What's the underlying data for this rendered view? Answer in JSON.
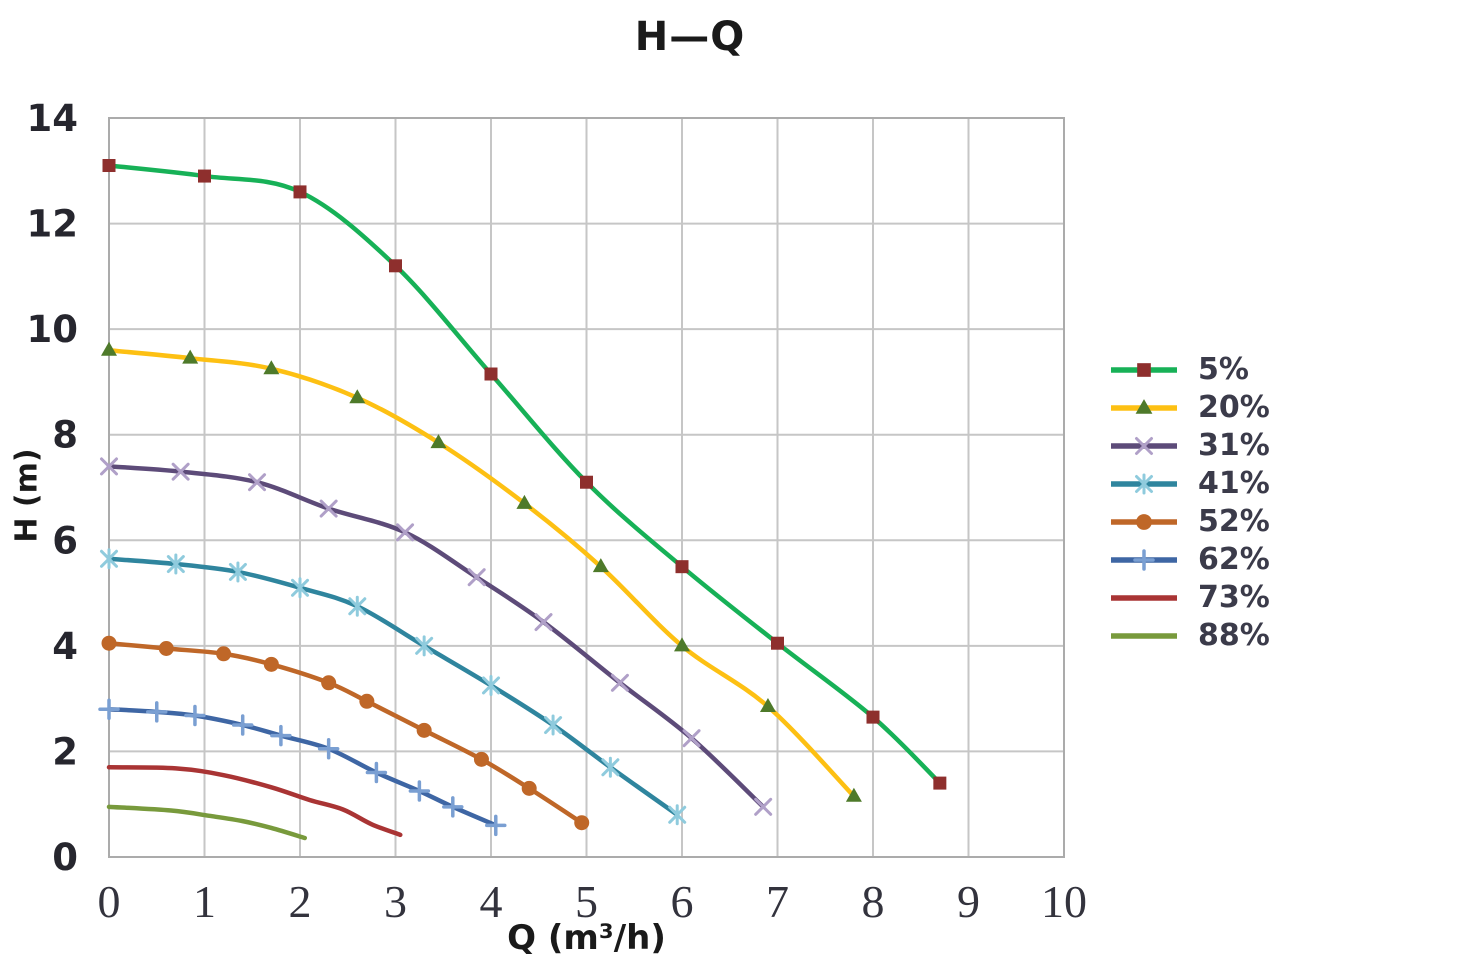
{
  "title": "H—Q",
  "axes": {
    "x_label": "Q (m³/h)",
    "y_label": "H (m)"
  },
  "colors": {
    "gridline": "#c6c6c6",
    "plot_border": "#ababab",
    "text": "#26262e"
  },
  "chart_data": {
    "type": "line",
    "title": "H—Q",
    "xlabel": "Q (m³/h)",
    "ylabel": "H (m)",
    "xlim": [
      0,
      10
    ],
    "ylim": [
      0,
      14
    ],
    "x_ticks": [
      0,
      1,
      2,
      3,
      4,
      5,
      6,
      7,
      8,
      9,
      10
    ],
    "y_ticks": [
      0,
      2,
      4,
      6,
      8,
      10,
      12,
      14
    ],
    "grid": true,
    "legend_position": "right",
    "series": [
      {
        "name": "5%",
        "line_color": "#17b157",
        "marker": "square",
        "marker_color": "#8e2f2d",
        "points": [
          [
            0,
            13.1
          ],
          [
            1,
            12.9
          ],
          [
            2,
            12.6
          ],
          [
            3,
            11.2
          ],
          [
            4,
            9.15
          ],
          [
            5,
            7.1
          ],
          [
            6,
            5.5
          ],
          [
            7,
            4.05
          ],
          [
            8,
            2.65
          ],
          [
            8.7,
            1.4
          ]
        ]
      },
      {
        "name": "20%",
        "line_color": "#fdc013",
        "marker": "triangle",
        "marker_color": "#4e7a2a",
        "points": [
          [
            0,
            9.6
          ],
          [
            0.85,
            9.45
          ],
          [
            1.7,
            9.25
          ],
          [
            2.6,
            8.7
          ],
          [
            3.45,
            7.85
          ],
          [
            4.35,
            6.7
          ],
          [
            5.15,
            5.5
          ],
          [
            6,
            4.0
          ],
          [
            6.9,
            2.85
          ],
          [
            7.8,
            1.15
          ]
        ]
      },
      {
        "name": "31%",
        "line_color": "#5d4b79",
        "marker": "x",
        "marker_color": "#b0a0c8",
        "points": [
          [
            0,
            7.4
          ],
          [
            0.75,
            7.3
          ],
          [
            1.55,
            7.1
          ],
          [
            2.3,
            6.6
          ],
          [
            3.1,
            6.15
          ],
          [
            3.85,
            5.3
          ],
          [
            4.55,
            4.45
          ],
          [
            5.35,
            3.3
          ],
          [
            6.1,
            2.25
          ],
          [
            6.85,
            0.95
          ]
        ]
      },
      {
        "name": "41%",
        "line_color": "#2f859e",
        "marker": "asterisk",
        "marker_color": "#8fcbdd",
        "points": [
          [
            0,
            5.65
          ],
          [
            0.7,
            5.55
          ],
          [
            1.35,
            5.4
          ],
          [
            2,
            5.1
          ],
          [
            2.6,
            4.75
          ],
          [
            3.3,
            4.0
          ],
          [
            4,
            3.25
          ],
          [
            4.65,
            2.5
          ],
          [
            5.25,
            1.7
          ],
          [
            5.95,
            0.8
          ]
        ]
      },
      {
        "name": "52%",
        "line_color": "#bf6728",
        "marker": "circle",
        "marker_color": "#bf6728",
        "points": [
          [
            0,
            4.05
          ],
          [
            0.6,
            3.95
          ],
          [
            1.2,
            3.85
          ],
          [
            1.7,
            3.65
          ],
          [
            2.3,
            3.3
          ],
          [
            2.7,
            2.95
          ],
          [
            3.3,
            2.4
          ],
          [
            3.9,
            1.85
          ],
          [
            4.4,
            1.3
          ],
          [
            4.95,
            0.65
          ]
        ]
      },
      {
        "name": "62%",
        "line_color": "#3e66a4",
        "marker": "plus",
        "marker_color": "#7a9fd2",
        "points": [
          [
            0,
            2.8
          ],
          [
            0.5,
            2.75
          ],
          [
            0.9,
            2.68
          ],
          [
            1.4,
            2.5
          ],
          [
            1.8,
            2.3
          ],
          [
            2.3,
            2.05
          ],
          [
            2.8,
            1.6
          ],
          [
            3.25,
            1.25
          ],
          [
            3.6,
            0.95
          ],
          [
            4.05,
            0.6
          ]
        ]
      },
      {
        "name": "73%",
        "line_color": "#a93434",
        "marker": "none",
        "marker_color": "#a93434",
        "points": [
          [
            0,
            1.7
          ],
          [
            0.7,
            1.68
          ],
          [
            1.2,
            1.55
          ],
          [
            1.7,
            1.32
          ],
          [
            2.1,
            1.08
          ],
          [
            2.45,
            0.9
          ],
          [
            2.75,
            0.62
          ],
          [
            3.05,
            0.42
          ]
        ]
      },
      {
        "name": "88%",
        "line_color": "#789a3c",
        "marker": "none",
        "marker_color": "#789a3c",
        "points": [
          [
            0,
            0.95
          ],
          [
            0.65,
            0.88
          ],
          [
            1.05,
            0.78
          ],
          [
            1.4,
            0.68
          ],
          [
            1.7,
            0.55
          ],
          [
            2.05,
            0.36
          ]
        ]
      }
    ]
  }
}
